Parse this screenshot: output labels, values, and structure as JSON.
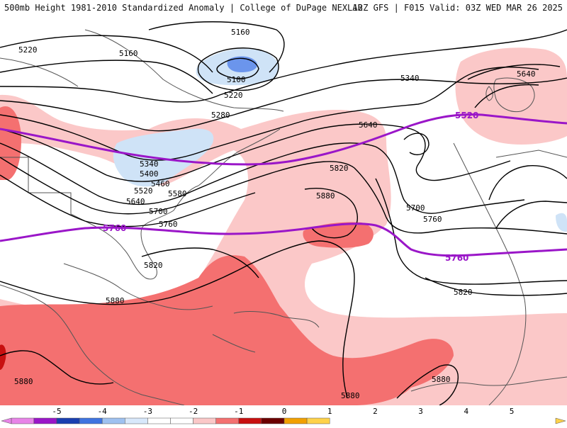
{
  "header": {
    "title": "500mb Height 1981-2010 Standardized Anomaly | College of DuPage NEXLAB",
    "run_info": "12Z GFS | F015 Valid: 03Z WED MAR 26 2025"
  },
  "map": {
    "height_contour_labels": [
      "5160",
      "5220",
      "5160",
      "5100",
      "5220",
      "5280",
      "5340",
      "5400",
      "5460",
      "5520",
      "5580",
      "5640",
      "5700",
      "5760",
      "5820",
      "5880",
      "5880",
      "5880",
      "5880",
      "5340",
      "5640",
      "5820",
      "5880",
      "5700",
      "5760",
      "5820",
      "5640"
    ],
    "reference_contour_labels": [
      "5760",
      "5520",
      "5760"
    ],
    "colors": {
      "positive_1": "#fbc8c8",
      "positive_2": "#f47070",
      "positive_3": "#c81010",
      "negative_1": "#cfe3f7",
      "negative_2": "#6b95ec",
      "reference_contour": "#9a16c8",
      "coastline": "#555555",
      "height_contour": "#000000"
    }
  },
  "colorbar": {
    "ticks": [
      "-5",
      "-4",
      "-3",
      "-2",
      "-1",
      "0",
      "1",
      "2",
      "3",
      "4",
      "5"
    ],
    "colors": [
      "#e884e8",
      "#9a16c8",
      "#1a3fb0",
      "#3f74e0",
      "#9ec1f0",
      "#d8e8fb",
      "#ffffff",
      "#ffffff",
      "#fbc8c8",
      "#f47070",
      "#c81010",
      "#6b0000",
      "#f2a000",
      "#ffd24a"
    ]
  }
}
